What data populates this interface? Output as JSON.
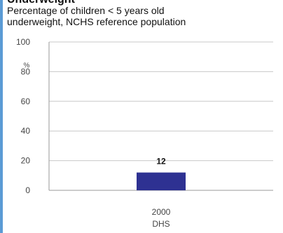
{
  "header": {
    "title_partial": "Underweight",
    "subtitle_line1": "Percentage of children < 5 years old",
    "subtitle_line2": "underweight, NCHS reference population"
  },
  "chart_data": {
    "type": "bar",
    "categories": [
      [
        "2000",
        "DHS"
      ]
    ],
    "values": [
      12
    ],
    "data_labels": [
      "12"
    ],
    "ylabel": "%",
    "ylim": [
      0,
      100
    ],
    "yticks": [
      0,
      20,
      40,
      60,
      80,
      100
    ],
    "grid": true,
    "colors": {
      "bar": "#2e3192",
      "grid": "#c8c8c8",
      "axis": "#999999",
      "accent": "#5b9bd5"
    }
  }
}
